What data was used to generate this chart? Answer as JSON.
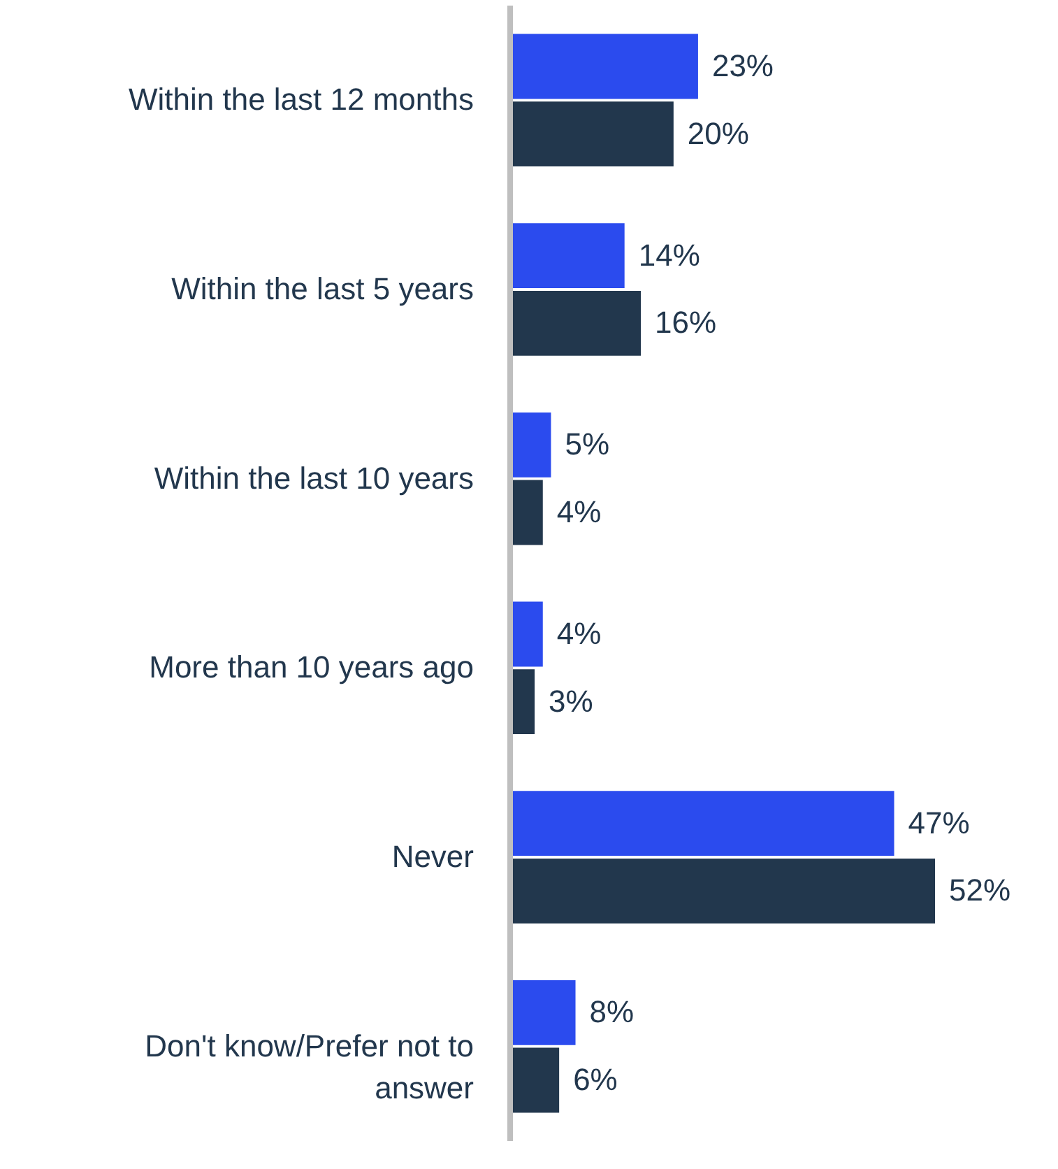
{
  "chart_data": {
    "type": "bar",
    "orientation": "horizontal",
    "categories": [
      "Within the last 12 months",
      "Within the last 5 years",
      "Within the last 10 years",
      "More than 10 years ago",
      "Never",
      "Don't know/Prefer not to answer"
    ],
    "series": [
      {
        "color": "#2b4bee",
        "values": [
          23,
          14,
          5,
          4,
          47,
          8
        ],
        "value_labels": [
          "23%",
          "14%",
          "5%",
          "4%",
          "47%",
          "8%"
        ]
      },
      {
        "color": "#22374d",
        "values": [
          20,
          16,
          4,
          3,
          52,
          6
        ],
        "value_labels": [
          "20%",
          "16%",
          "4%",
          "3%",
          "52%",
          "6%"
        ]
      }
    ],
    "grid": false,
    "tick_labels": "y"
  }
}
